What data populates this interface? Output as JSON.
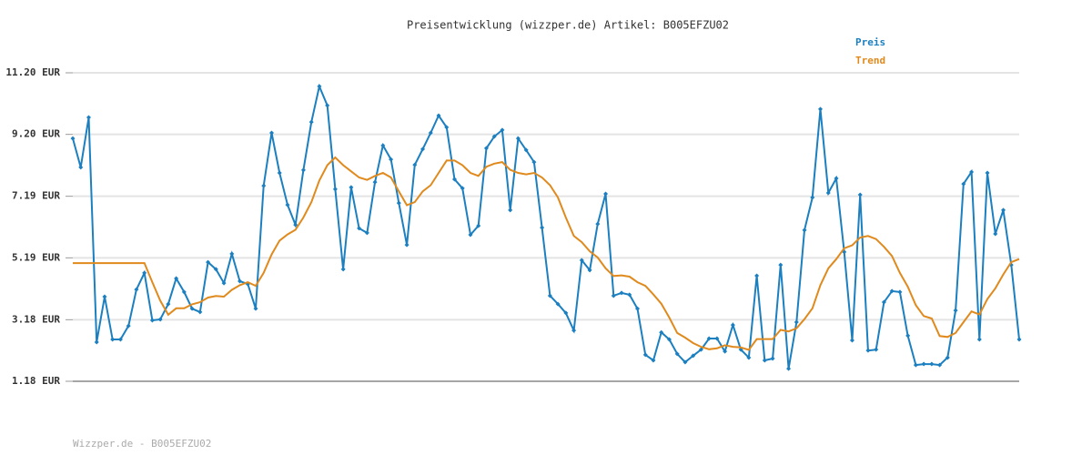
{
  "chart_data": {
    "type": "line",
    "title": "Preisentwicklung (wizzper.de) Artikel: B005EFZU02",
    "footer": "Wizzper.de - B005EFZU02",
    "ylim": [
      1.18,
      11.2
    ],
    "yticks": [
      {
        "value": 1.18,
        "label": "1.18 EUR"
      },
      {
        "value": 3.18,
        "label": "3.18 EUR"
      },
      {
        "value": 5.19,
        "label": "5.19 EUR"
      },
      {
        "value": 7.19,
        "label": "7.19 EUR"
      },
      {
        "value": 9.2,
        "label": "9.20 EUR"
      },
      {
        "value": 11.2,
        "label": "11.20 EUR"
      }
    ],
    "grid": true,
    "legend": "top-right",
    "series": [
      {
        "name": "Preis",
        "color": "#1b7fc0",
        "markers": true,
        "values": [
          9.07,
          8.13,
          9.75,
          2.45,
          3.93,
          2.54,
          2.54,
          2.98,
          4.16,
          4.7,
          3.16,
          3.19,
          3.69,
          4.52,
          4.08,
          3.54,
          3.43,
          5.05,
          4.82,
          4.37,
          5.32,
          4.43,
          4.34,
          3.54,
          7.53,
          9.25,
          7.95,
          6.91,
          6.26,
          8.04,
          9.6,
          10.76,
          10.14,
          7.42,
          4.82,
          7.48,
          6.15,
          6.0,
          7.65,
          8.84,
          8.39,
          6.97,
          5.61,
          8.21,
          8.72,
          9.25,
          9.81,
          9.43,
          7.74,
          7.45,
          5.94,
          6.23,
          8.75,
          9.13,
          9.34,
          6.74,
          9.07,
          8.69,
          8.3,
          6.17,
          3.96,
          3.69,
          3.4,
          2.83,
          5.11,
          4.79,
          6.29,
          7.27,
          3.96,
          4.05,
          3.99,
          3.54,
          2.04,
          1.86,
          2.77,
          2.54,
          2.07,
          1.8,
          2.01,
          2.21,
          2.57,
          2.57,
          2.15,
          3.01,
          2.21,
          1.95,
          4.61,
          1.86,
          1.92,
          4.96,
          1.59,
          3.1,
          6.09,
          7.15,
          10.02,
          7.3,
          7.77,
          5.38,
          2.51,
          7.24,
          2.18,
          2.21,
          3.75,
          4.11,
          4.08,
          2.66,
          1.71,
          1.74,
          1.74,
          1.71,
          1.95,
          3.48,
          7.59,
          7.98,
          2.54,
          7.95,
          5.97,
          6.74,
          4.96,
          2.54
        ]
      },
      {
        "name": "Trend",
        "color": "#e08a1e",
        "markers": false,
        "values": [
          5.02,
          5.02,
          5.02,
          5.02,
          5.02,
          5.02,
          5.02,
          5.02,
          5.02,
          5.02,
          4.4,
          3.8,
          3.34,
          3.55,
          3.55,
          3.68,
          3.75,
          3.9,
          3.95,
          3.93,
          4.15,
          4.3,
          4.4,
          4.28,
          4.7,
          5.3,
          5.75,
          5.95,
          6.1,
          6.5,
          7.0,
          7.7,
          8.2,
          8.45,
          8.2,
          8.0,
          7.8,
          7.72,
          7.85,
          7.95,
          7.8,
          7.35,
          6.9,
          7.0,
          7.35,
          7.55,
          7.95,
          8.35,
          8.35,
          8.2,
          7.95,
          7.85,
          8.15,
          8.25,
          8.3,
          8.05,
          7.95,
          7.9,
          7.95,
          7.8,
          7.55,
          7.15,
          6.5,
          5.9,
          5.7,
          5.4,
          5.2,
          4.85,
          4.6,
          4.62,
          4.58,
          4.4,
          4.28,
          4.0,
          3.7,
          3.25,
          2.75,
          2.6,
          2.42,
          2.3,
          2.22,
          2.25,
          2.35,
          2.3,
          2.28,
          2.2,
          2.55,
          2.55,
          2.55,
          2.85,
          2.8,
          2.9,
          3.2,
          3.55,
          4.3,
          4.85,
          5.15,
          5.5,
          5.6,
          5.85,
          5.9,
          5.8,
          5.55,
          5.25,
          4.7,
          4.25,
          3.65,
          3.3,
          3.22,
          2.65,
          2.62,
          2.75,
          3.1,
          3.45,
          3.35,
          3.85,
          4.2,
          4.65,
          5.05,
          5.15
        ]
      }
    ]
  }
}
